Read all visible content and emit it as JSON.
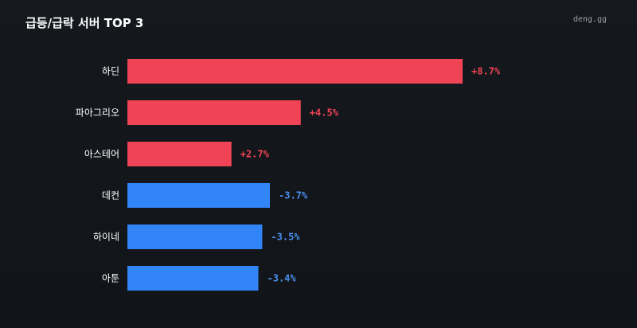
{
  "header": {
    "title": "급등/급락 서버 TOP 3",
    "brand": "deng.gg"
  },
  "colors": {
    "up": "#f04355",
    "down": "#3185f7",
    "up_text": "#f04355",
    "down_text": "#4a90f0"
  },
  "chart_data": {
    "type": "bar",
    "orientation": "horizontal",
    "title": "급등/급락 서버 TOP 3",
    "categories": [
      "하딘",
      "파아그리오",
      "아스테어",
      "데컨",
      "하이네",
      "아툰"
    ],
    "values": [
      8.7,
      4.5,
      2.7,
      -3.7,
      -3.5,
      -3.4
    ],
    "value_labels": [
      "+8.7%",
      "+4.5%",
      "+2.7%",
      "-3.7%",
      "-3.5%",
      "-3.4%"
    ],
    "xlabel": "",
    "ylabel": "",
    "grid": false,
    "legend": "none"
  }
}
